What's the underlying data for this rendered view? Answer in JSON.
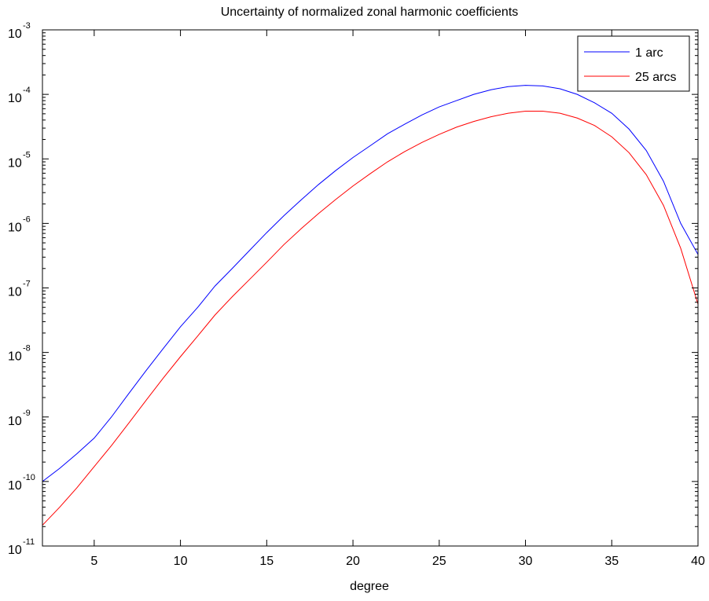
{
  "chart_data": {
    "type": "line",
    "title": "Uncertainty of normalized zonal harmonic coefficients",
    "xlabel": "degree",
    "ylabel": "",
    "xlim": [
      2,
      40
    ],
    "ylim": [
      1e-11,
      0.001
    ],
    "yscale": "log",
    "grid": false,
    "legend_position": "top-right",
    "x_ticks": [
      "5",
      "10",
      "15",
      "20",
      "25",
      "30",
      "35",
      "40"
    ],
    "y_ticks": [
      {
        "base": "10",
        "exp": "-11"
      },
      {
        "base": "10",
        "exp": "-10"
      },
      {
        "base": "10",
        "exp": "-9"
      },
      {
        "base": "10",
        "exp": "-8"
      },
      {
        "base": "10",
        "exp": "-7"
      },
      {
        "base": "10",
        "exp": "-6"
      },
      {
        "base": "10",
        "exp": "-5"
      },
      {
        "base": "10",
        "exp": "-4"
      },
      {
        "base": "10",
        "exp": "-3"
      }
    ],
    "x": [
      2,
      3,
      4,
      5,
      6,
      7,
      8,
      9,
      10,
      11,
      12,
      13,
      14,
      15,
      16,
      17,
      18,
      19,
      20,
      21,
      22,
      23,
      24,
      25,
      26,
      27,
      28,
      29,
      30,
      31,
      32,
      33,
      34,
      35,
      36,
      37,
      38,
      39,
      40
    ],
    "series": [
      {
        "name": "1 arc",
        "color": "#0000ff",
        "values": [
          1e-10,
          1.6e-10,
          2.7e-10,
          4.7e-10,
          1e-09,
          2.3e-09,
          5.2e-09,
          1.15e-08,
          2.5e-08,
          5e-08,
          1.07e-07,
          2e-07,
          3.8e-07,
          7.2e-07,
          1.32e-06,
          2.32e-06,
          4e-06,
          6.6e-06,
          1.05e-05,
          1.6e-05,
          2.45e-05,
          3.45e-05,
          4.8e-05,
          6.4e-05,
          8e-05,
          0.0001,
          0.000118,
          0.000132,
          0.000138,
          0.000135,
          0.000122,
          0.0001,
          7.4e-05,
          5.1e-05,
          2.9e-05,
          1.35e-05,
          4.5e-06,
          1e-06,
          3.3e-07
        ]
      },
      {
        "name": "25 arcs",
        "color": "#ff0000",
        "values": [
          2.1e-11,
          4e-11,
          8e-11,
          1.7e-10,
          3.6e-10,
          8e-10,
          1.8e-09,
          4e-09,
          8.6e-09,
          1.8e-08,
          3.8e-08,
          7.3e-08,
          1.35e-07,
          2.5e-07,
          4.7e-07,
          8.3e-07,
          1.42e-06,
          2.35e-06,
          3.8e-06,
          5.9e-06,
          9e-06,
          1.3e-05,
          1.8e-05,
          2.4e-05,
          3.1e-05,
          3.8e-05,
          4.5e-05,
          5.1e-05,
          5.5e-05,
          5.5e-05,
          5.1e-05,
          4.3e-05,
          3.3e-05,
          2.2e-05,
          1.25e-05,
          5.7e-06,
          1.9e-06,
          4.1e-07,
          5.6e-08
        ]
      }
    ]
  }
}
